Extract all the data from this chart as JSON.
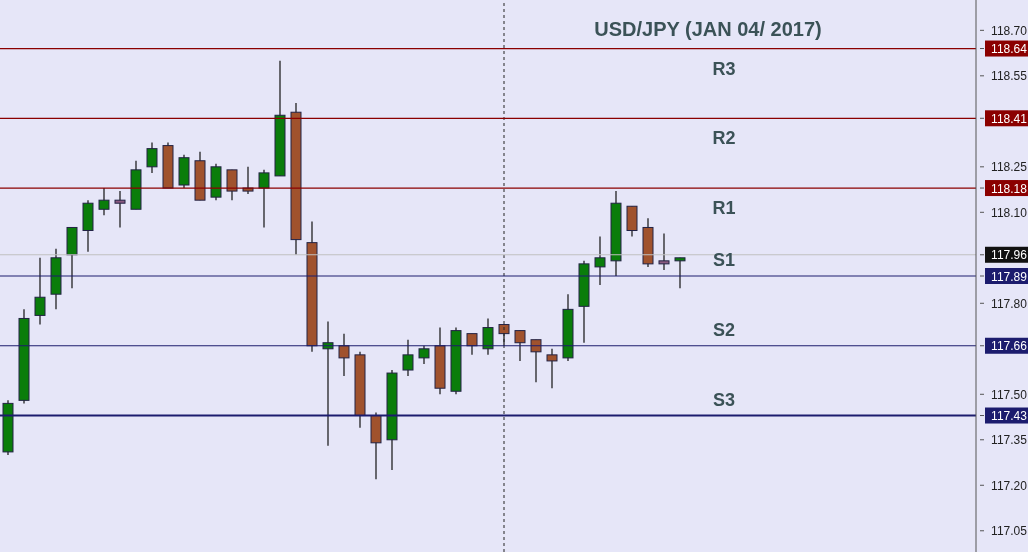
{
  "chart_data": {
    "type": "candlestick",
    "title": "USD/JPY (JAN 04/ 2017)",
    "categories": [
      null,
      null,
      null,
      null,
      null,
      null,
      null,
      null,
      null,
      null,
      null,
      null,
      null,
      null,
      null,
      null,
      null,
      null,
      null,
      null,
      null,
      null,
      null,
      null,
      null,
      null,
      null,
      null,
      null,
      null,
      null,
      null,
      null,
      null,
      null,
      null,
      null,
      null,
      null,
      null,
      null,
      null,
      null,
      null,
      null,
      null,
      null,
      null,
      null,
      null,
      null,
      null,
      null,
      null,
      null,
      null,
      null,
      null,
      null,
      null,
      null
    ],
    "ohlc": [
      [
        117.31,
        117.48,
        117.3,
        117.47
      ],
      [
        117.48,
        117.78,
        117.47,
        117.75
      ],
      [
        117.76,
        117.95,
        117.73,
        117.82
      ],
      [
        117.83,
        117.98,
        117.78,
        117.95
      ],
      [
        117.96,
        118.05,
        117.85,
        118.05
      ],
      [
        118.04,
        118.14,
        117.97,
        118.13
      ],
      [
        118.11,
        118.18,
        118.09,
        118.14
      ],
      [
        118.14,
        118.17,
        118.05,
        118.13
      ],
      [
        118.11,
        118.27,
        118.11,
        118.24
      ],
      [
        118.25,
        118.33,
        118.23,
        118.31
      ],
      [
        118.32,
        118.33,
        118.18,
        118.18
      ],
      [
        118.19,
        118.29,
        118.18,
        118.28
      ],
      [
        118.27,
        118.3,
        118.14,
        118.14
      ],
      [
        118.15,
        118.26,
        118.14,
        118.25
      ],
      [
        118.24,
        118.24,
        118.14,
        118.17
      ],
      [
        118.18,
        118.25,
        118.16,
        118.17
      ],
      [
        118.18,
        118.24,
        118.05,
        118.23
      ],
      [
        118.22,
        118.6,
        118.22,
        118.42
      ],
      [
        118.43,
        118.46,
        117.96,
        118.01
      ],
      [
        118.0,
        118.07,
        117.64,
        117.66
      ],
      [
        117.65,
        117.74,
        117.33,
        117.67
      ],
      [
        117.66,
        117.7,
        117.56,
        117.62
      ],
      [
        117.63,
        117.64,
        117.39,
        117.43
      ],
      [
        117.43,
        117.44,
        117.22,
        117.34
      ],
      [
        117.35,
        117.58,
        117.25,
        117.57
      ],
      [
        117.58,
        117.68,
        117.56,
        117.63
      ],
      [
        117.62,
        117.66,
        117.6,
        117.65
      ],
      [
        117.66,
        117.72,
        117.5,
        117.52
      ],
      [
        117.51,
        117.72,
        117.5,
        117.71
      ],
      [
        117.7,
        117.7,
        117.63,
        117.66
      ],
      [
        117.65,
        117.75,
        117.63,
        117.72
      ],
      [
        117.73,
        117.73,
        117.66,
        117.7
      ],
      [
        117.71,
        117.71,
        117.61,
        117.67
      ],
      [
        117.68,
        117.68,
        117.54,
        117.64
      ],
      [
        117.63,
        117.65,
        117.52,
        117.61
      ],
      [
        117.62,
        117.83,
        117.61,
        117.78
      ],
      [
        117.79,
        117.94,
        117.67,
        117.93
      ],
      [
        117.92,
        118.02,
        117.86,
        117.95
      ],
      [
        117.94,
        118.17,
        117.89,
        118.13
      ],
      [
        118.12,
        118.12,
        118.02,
        118.04
      ],
      [
        118.05,
        118.08,
        117.92,
        117.93
      ],
      [
        117.94,
        118.03,
        117.91,
        117.93
      ],
      [
        117.94,
        117.95,
        117.85,
        117.95
      ],
      null,
      null,
      null,
      null,
      null,
      null,
      null,
      null,
      null,
      null,
      null,
      null,
      null,
      null,
      null,
      null,
      null,
      null
    ],
    "colors": [
      "#0a7d0a",
      "#0a7d0a",
      "#0a7d0a",
      "#0a7d0a",
      "#0a7d0a",
      "#0a7d0a",
      "#0a7d0a",
      "#8a5a80",
      "#0a7d0a",
      "#0a7d0a",
      "#a0522d",
      "#0a7d0a",
      "#a0522d",
      "#0a7d0a",
      "#a0522d",
      "#a0522d",
      "#0a7d0a",
      "#0a7d0a",
      "#a0522d",
      "#a0522d",
      "#0a7d0a",
      "#a0522d",
      "#a0522d",
      "#a0522d",
      "#0a7d0a",
      "#0a7d0a",
      "#0a7d0a",
      "#a0522d",
      "#0a7d0a",
      "#a0522d",
      "#0a7d0a",
      "#a0522d",
      "#a0522d",
      "#a0522d",
      "#a0522d",
      "#0a7d0a",
      "#0a7d0a",
      "#0a7d0a",
      "#0a7d0a",
      "#a0522d",
      "#a0522d",
      "#8a5a80",
      "#0a7d0a",
      null,
      null,
      null,
      null,
      null,
      null,
      null,
      null,
      null,
      null,
      null,
      null,
      null,
      null,
      null,
      null,
      null,
      null
    ],
    "ylim": [
      116.98,
      118.8
    ],
    "yticks": [
      {
        "value": 118.7,
        "label": "118.70"
      },
      118.64,
      118.55,
      118.41,
      118.25,
      118.18,
      {
        "value": 118.1,
        "label": "118.10"
      },
      117.96,
      117.89,
      {
        "value": 117.8,
        "label": "117.80"
      },
      117.66,
      {
        "value": 117.5,
        "label": "117.50"
      },
      117.43,
      117.35,
      {
        "value": 117.2,
        "label": "117.20"
      },
      117.05
    ],
    "tick_labels": "y",
    "ref_lines": [
      {
        "axis": "y",
        "value": 118.64,
        "label": "R3",
        "color": "#8b0000",
        "line_style": "solid"
      },
      {
        "axis": "y",
        "value": 118.41,
        "label": "R2",
        "color": "#8b0000",
        "line_style": "solid"
      },
      {
        "axis": "y",
        "value": 118.18,
        "label": "R1",
        "color": "#8b0000",
        "line_style": "solid"
      },
      {
        "axis": "y",
        "value": 117.96,
        "label": null,
        "color": "#c0c0c0",
        "line_style": "solid"
      },
      {
        "axis": "y",
        "value": 117.89,
        "label": "S1",
        "color": "#1c1c6e",
        "line_style": "solid"
      },
      {
        "axis": "y",
        "value": 117.66,
        "label": "S2",
        "color": "#1c1c6e",
        "line_style": "solid"
      },
      {
        "axis": "y",
        "value": 117.43,
        "label": "S3",
        "color": "#1c1c6e",
        "line_style": "solid"
      }
    ]
  }
}
